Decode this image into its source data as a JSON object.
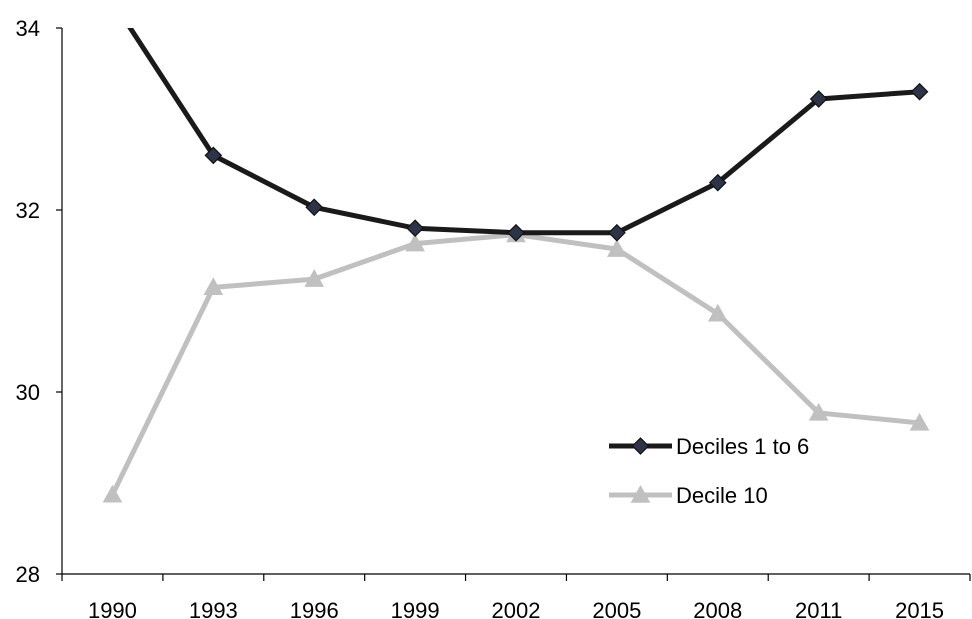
{
  "chart_data": {
    "type": "line",
    "categories": [
      "1990",
      "1993",
      "1996",
      "1999",
      "2002",
      "2005",
      "2008",
      "2011",
      "2015"
    ],
    "series": [
      {
        "name": "Deciles 1 to 6",
        "values": [
          34.3,
          32.6,
          32.03,
          31.8,
          31.75,
          31.75,
          32.3,
          33.22,
          33.3
        ],
        "color": "#1a1a1a",
        "marker": "diamond",
        "marker_color": "#2d3447"
      },
      {
        "name": "Decile 10",
        "values": [
          28.87,
          31.15,
          31.24,
          31.63,
          31.73,
          31.57,
          30.86,
          29.77,
          29.66
        ],
        "color": "#c0c0c0",
        "marker": "triangle",
        "marker_color": "#c0c0c0"
      }
    ],
    "ylim": [
      28,
      34
    ],
    "yticks": [
      "28",
      "30",
      "32",
      "34"
    ],
    "grid": false,
    "legend_position": "lower-right",
    "title": "",
    "xlabel": "",
    "ylabel": ""
  }
}
